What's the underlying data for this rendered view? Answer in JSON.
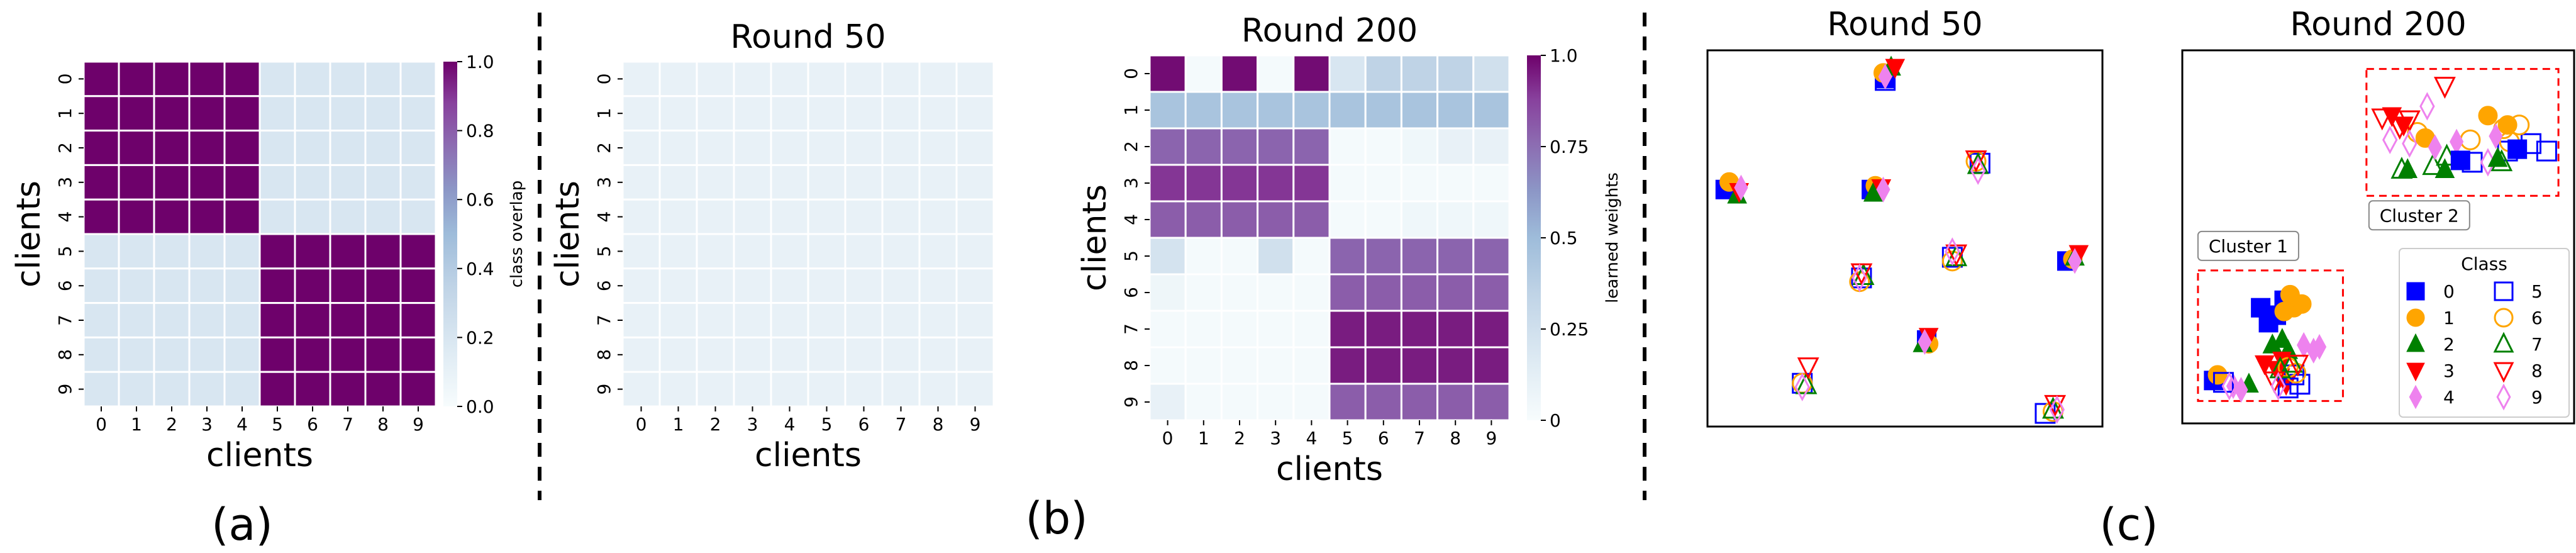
{
  "colors": {
    "heat_low": "#f7fcfd",
    "heat_mid": "#8c96c6",
    "heat_high": "#4d004b",
    "overlap_low": "#c6d8ea",
    "class0": "#0000ff",
    "class1": "#ffa500",
    "class2": "#008000",
    "class3": "#ff0000",
    "class4": "#ee82ee",
    "cluster_box": "#ff0000"
  },
  "panel_labels": [
    "(a)",
    "(b)",
    "(c)"
  ],
  "chart_data": [
    {
      "id": "a",
      "type": "heatmap",
      "title": "",
      "xlabel": "clients",
      "ylabel": "clients",
      "x": [
        "0",
        "1",
        "2",
        "3",
        "4",
        "5",
        "6",
        "7",
        "8",
        "9"
      ],
      "y": [
        "0",
        "1",
        "2",
        "3",
        "4",
        "5",
        "6",
        "7",
        "8",
        "9"
      ],
      "values": [
        [
          1,
          1,
          1,
          1,
          1,
          0.2,
          0.2,
          0.2,
          0.2,
          0.2
        ],
        [
          1,
          1,
          1,
          1,
          1,
          0.2,
          0.2,
          0.2,
          0.2,
          0.2
        ],
        [
          1,
          1,
          1,
          1,
          1,
          0.2,
          0.2,
          0.2,
          0.2,
          0.2
        ],
        [
          1,
          1,
          1,
          1,
          1,
          0.2,
          0.2,
          0.2,
          0.2,
          0.2
        ],
        [
          1,
          1,
          1,
          1,
          1,
          0.2,
          0.2,
          0.2,
          0.2,
          0.2
        ],
        [
          0.2,
          0.2,
          0.2,
          0.2,
          0.2,
          1,
          1,
          1,
          1,
          1
        ],
        [
          0.2,
          0.2,
          0.2,
          0.2,
          0.2,
          1,
          1,
          1,
          1,
          1
        ],
        [
          0.2,
          0.2,
          0.2,
          0.2,
          0.2,
          1,
          1,
          1,
          1,
          1
        ],
        [
          0.2,
          0.2,
          0.2,
          0.2,
          0.2,
          1,
          1,
          1,
          1,
          1
        ],
        [
          0.2,
          0.2,
          0.2,
          0.2,
          0.2,
          1,
          1,
          1,
          1,
          1
        ]
      ],
      "vmin": 0,
      "vmax": 1,
      "colorbar": {
        "label": "class overlap",
        "ticks": [
          "0.0",
          "0.2",
          "0.4",
          "0.6",
          "0.8",
          "1.0"
        ],
        "tick_values": [
          0,
          0.2,
          0.4,
          0.6,
          0.8,
          1.0
        ]
      }
    },
    {
      "id": "b1",
      "type": "heatmap",
      "title": "Round 50",
      "xlabel": "clients",
      "ylabel": "clients",
      "x": [
        "0",
        "1",
        "2",
        "3",
        "4",
        "5",
        "6",
        "7",
        "8",
        "9"
      ],
      "y": [
        "0",
        "1",
        "2",
        "3",
        "4",
        "5",
        "6",
        "7",
        "8",
        "9"
      ],
      "values": [
        [
          0.1,
          0.1,
          0.1,
          0.1,
          0.1,
          0.1,
          0.1,
          0.1,
          0.1,
          0.1
        ],
        [
          0.1,
          0.1,
          0.1,
          0.1,
          0.1,
          0.1,
          0.1,
          0.1,
          0.1,
          0.1
        ],
        [
          0.1,
          0.1,
          0.1,
          0.1,
          0.1,
          0.1,
          0.1,
          0.1,
          0.1,
          0.1
        ],
        [
          0.1,
          0.1,
          0.1,
          0.1,
          0.1,
          0.1,
          0.1,
          0.1,
          0.1,
          0.1
        ],
        [
          0.1,
          0.1,
          0.1,
          0.1,
          0.1,
          0.1,
          0.1,
          0.1,
          0.1,
          0.1
        ],
        [
          0.1,
          0.1,
          0.1,
          0.1,
          0.1,
          0.1,
          0.1,
          0.1,
          0.1,
          0.1
        ],
        [
          0.1,
          0.1,
          0.1,
          0.1,
          0.1,
          0.1,
          0.1,
          0.1,
          0.1,
          0.1
        ],
        [
          0.1,
          0.1,
          0.1,
          0.1,
          0.1,
          0.1,
          0.1,
          0.1,
          0.1,
          0.1
        ],
        [
          0.1,
          0.1,
          0.1,
          0.1,
          0.1,
          0.1,
          0.1,
          0.1,
          0.1,
          0.1
        ],
        [
          0.1,
          0.1,
          0.1,
          0.1,
          0.1,
          0.1,
          0.1,
          0.1,
          0.1,
          0.1
        ]
      ],
      "vmin": 0,
      "vmax": 1
    },
    {
      "id": "b2",
      "type": "heatmap",
      "title": "Round 200",
      "xlabel": "clients",
      "ylabel": "clients",
      "x": [
        "0",
        "1",
        "2",
        "3",
        "4",
        "5",
        "6",
        "7",
        "8",
        "9"
      ],
      "y": [
        "0",
        "1",
        "2",
        "3",
        "4",
        "5",
        "6",
        "7",
        "8",
        "9"
      ],
      "values": [
        [
          0.98,
          0.02,
          0.98,
          0.02,
          0.98,
          0.2,
          0.35,
          0.35,
          0.35,
          0.25
        ],
        [
          0.45,
          0.45,
          0.45,
          0.45,
          0.45,
          0.45,
          0.45,
          0.45,
          0.45,
          0.45
        ],
        [
          0.78,
          0.78,
          0.78,
          0.78,
          0.78,
          0.02,
          0.02,
          0.05,
          0.1,
          0.1
        ],
        [
          0.9,
          0.9,
          0.9,
          0.9,
          0.9,
          0.02,
          0.02,
          0.02,
          0.02,
          0.02
        ],
        [
          0.8,
          0.8,
          0.8,
          0.8,
          0.8,
          0.02,
          0.02,
          0.05,
          0.05,
          0.05
        ],
        [
          0.22,
          0.02,
          0.02,
          0.25,
          0.02,
          0.78,
          0.78,
          0.78,
          0.78,
          0.78
        ],
        [
          0.06,
          0.02,
          0.02,
          0.02,
          0.02,
          0.8,
          0.8,
          0.8,
          0.8,
          0.8
        ],
        [
          0.02,
          0.02,
          0.02,
          0.02,
          0.02,
          0.95,
          0.95,
          0.95,
          0.95,
          0.95
        ],
        [
          0.02,
          0.02,
          0.02,
          0.02,
          0.02,
          0.95,
          0.95,
          0.95,
          0.95,
          0.95
        ],
        [
          0.1,
          0.02,
          0.02,
          0.02,
          0.02,
          0.8,
          0.8,
          0.8,
          0.8,
          0.8
        ]
      ],
      "vmin": 0,
      "vmax": 1,
      "colorbar": {
        "label": "learned weights",
        "ticks": [
          "0",
          "0.25",
          "0.5",
          "0.75",
          "1.0"
        ],
        "tick_values": [
          0,
          0.25,
          0.5,
          0.75,
          1.0
        ]
      }
    },
    {
      "id": "c1",
      "type": "scatter",
      "title": "Round 50",
      "xlim": [
        0,
        10
      ],
      "ylim": [
        0,
        10
      ],
      "groups": [
        {
          "x": 0.45,
          "y": 6.3,
          "m": [
            [
              0,
              0,
              0
            ],
            [
              1,
              0.1,
              0.2
            ],
            [
              2,
              0.3,
              -0.15
            ],
            [
              3,
              0.35,
              -0.05
            ],
            [
              4,
              0.4,
              0.05
            ]
          ]
        },
        {
          "x": 4.5,
          "y": 9.2,
          "m": [
            [
              5,
              0,
              0
            ],
            [
              0,
              0,
              0.05
            ],
            [
              1,
              -0.05,
              0.2
            ],
            [
              2,
              0.15,
              0.35
            ],
            [
              3,
              0.25,
              0.35
            ],
            [
              4,
              0,
              0.1
            ]
          ]
        },
        {
          "x": 4.15,
          "y": 6.3,
          "m": [
            [
              0,
              0,
              0
            ],
            [
              1,
              0.1,
              0.1
            ],
            [
              2,
              0.05,
              -0.1
            ],
            [
              3,
              0.25,
              0.05
            ],
            [
              4,
              0.3,
              0
            ]
          ]
        },
        {
          "x": 6.9,
          "y": 7.0,
          "m": [
            [
              5,
              0,
              0
            ],
            [
              6,
              -0.1,
              0.05
            ],
            [
              7,
              -0.05,
              -0.05
            ],
            [
              8,
              -0.1,
              0.1
            ],
            [
              9,
              -0.05,
              -0.2
            ]
          ]
        },
        {
          "x": 3.9,
          "y": 3.95,
          "m": [
            [
              5,
              0,
              0
            ],
            [
              6,
              -0.05,
              -0.1
            ],
            [
              7,
              0.05,
              0.05
            ],
            [
              8,
              0,
              0.15
            ],
            [
              9,
              -0.05,
              0
            ]
          ]
        },
        {
          "x": 6.2,
          "y": 4.5,
          "m": [
            [
              5,
              0,
              0
            ],
            [
              6,
              0,
              -0.1
            ],
            [
              7,
              0.1,
              0
            ],
            [
              8,
              0.1,
              0.1
            ],
            [
              9,
              0,
              0.15
            ]
          ]
        },
        {
          "x": 9.1,
          "y": 4.4,
          "m": [
            [
              0,
              0,
              0
            ],
            [
              1,
              0.15,
              0.05
            ],
            [
              2,
              0.2,
              0.1
            ],
            [
              3,
              0.3,
              0.2
            ],
            [
              4,
              0.2,
              0
            ]
          ]
        },
        {
          "x": 5.55,
          "y": 2.3,
          "m": [
            [
              0,
              0,
              0
            ],
            [
              1,
              0.05,
              -0.1
            ],
            [
              2,
              -0.1,
              -0.1
            ],
            [
              3,
              0.05,
              0.1
            ],
            [
              4,
              -0.05,
              -0.05
            ]
          ]
        },
        {
          "x": 2.4,
          "y": 1.15,
          "m": [
            [
              5,
              0,
              0
            ],
            [
              6,
              0,
              0
            ],
            [
              7,
              0.1,
              -0.05
            ],
            [
              8,
              0.15,
              0.45
            ],
            [
              9,
              0,
              -0.1
            ]
          ]
        },
        {
          "x": 8.55,
          "y": 0.35,
          "m": [
            [
              5,
              0,
              0
            ],
            [
              6,
              0.2,
              0.05
            ],
            [
              7,
              0.2,
              0.1
            ],
            [
              8,
              0.25,
              0.25
            ],
            [
              9,
              0.3,
              0.1
            ]
          ]
        }
      ]
    },
    {
      "id": "c2",
      "type": "scatter",
      "title": "Round 200",
      "xlim": [
        0,
        10
      ],
      "ylim": [
        0,
        10
      ],
      "clusters": [
        {
          "label": "Cluster 1",
          "x0": 0.4,
          "x1": 4.1,
          "y0": 0.6,
          "y1": 4.1
        },
        {
          "label": "Cluster 2",
          "x0": 4.7,
          "x1": 9.6,
          "y0": 6.1,
          "y1": 9.5
        }
      ],
      "legend": {
        "title": "Class",
        "entries": [
          "0",
          "1",
          "2",
          "3",
          "4",
          "5",
          "6",
          "7",
          "8",
          "9"
        ],
        "placement": "lower-right"
      },
      "points": [
        [
          0,
          2.0,
          3.1
        ],
        [
          0,
          2.4,
          2.9
        ],
        [
          0,
          2.2,
          2.7
        ],
        [
          0,
          0.8,
          1.15
        ],
        [
          0,
          2.6,
          3.3
        ],
        [
          1,
          2.6,
          3.0
        ],
        [
          1,
          2.85,
          3.1
        ],
        [
          1,
          3.05,
          3.2
        ],
        [
          1,
          2.75,
          3.45
        ],
        [
          1,
          0.9,
          1.3
        ],
        [
          2,
          2.3,
          2.1
        ],
        [
          2,
          2.55,
          2.25
        ],
        [
          2,
          2.7,
          1.95
        ],
        [
          2,
          1.7,
          1.05
        ],
        [
          3,
          2.1,
          1.6
        ],
        [
          3,
          2.4,
          1.45
        ],
        [
          3,
          2.55,
          1.7
        ],
        [
          3,
          2.5,
          1.25
        ],
        [
          3,
          2.65,
          1.05
        ],
        [
          4,
          3.1,
          2.1
        ],
        [
          4,
          3.35,
          1.95
        ],
        [
          4,
          3.5,
          2.05
        ],
        [
          4,
          1.5,
          0.9
        ],
        [
          4,
          1.3,
          1.0
        ],
        [
          5,
          2.85,
          1.3
        ],
        [
          5,
          3.0,
          1.05
        ],
        [
          5,
          2.7,
          0.95
        ],
        [
          5,
          1.05,
          1.1
        ],
        [
          6,
          2.7,
          1.5
        ],
        [
          6,
          2.9,
          1.35
        ],
        [
          7,
          2.5,
          1.45
        ],
        [
          7,
          2.8,
          1.6
        ],
        [
          8,
          2.35,
          1.15
        ],
        [
          8,
          2.95,
          1.6
        ],
        [
          9,
          2.45,
          1.0
        ],
        [
          9,
          1.2,
          1.0
        ],
        [
          5,
          7.4,
          7.0
        ],
        [
          5,
          8.3,
          7.3
        ],
        [
          5,
          8.9,
          7.5
        ],
        [
          5,
          9.3,
          7.3
        ],
        [
          6,
          6.0,
          7.8
        ],
        [
          6,
          7.35,
          7.6
        ],
        [
          6,
          8.2,
          7.9
        ],
        [
          6,
          8.6,
          8.0
        ],
        [
          6,
          8.35,
          7.55
        ],
        [
          7,
          5.6,
          6.8
        ],
        [
          7,
          6.4,
          6.9
        ],
        [
          7,
          8.15,
          7.0
        ],
        [
          7,
          6.75,
          7.15
        ],
        [
          8,
          5.1,
          8.2
        ],
        [
          8,
          5.55,
          7.95
        ],
        [
          8,
          5.8,
          8.15
        ],
        [
          8,
          6.7,
          9.05
        ],
        [
          9,
          5.3,
          7.6
        ],
        [
          9,
          6.25,
          8.5
        ],
        [
          9,
          5.8,
          7.5
        ],
        [
          9,
          7.8,
          7.0
        ],
        [
          3,
          5.35,
          8.25
        ],
        [
          3,
          5.65,
          8.0
        ],
        [
          1,
          6.2,
          7.65
        ],
        [
          1,
          7.8,
          8.25
        ],
        [
          1,
          8.3,
          8.0
        ],
        [
          4,
          6.45,
          7.4
        ],
        [
          4,
          7.0,
          7.55
        ],
        [
          4,
          8.0,
          7.7
        ],
        [
          2,
          5.75,
          6.8
        ],
        [
          2,
          6.7,
          6.8
        ],
        [
          2,
          8.05,
          7.1
        ],
        [
          0,
          7.1,
          7.05
        ],
        [
          0,
          8.55,
          7.35
        ]
      ]
    }
  ]
}
